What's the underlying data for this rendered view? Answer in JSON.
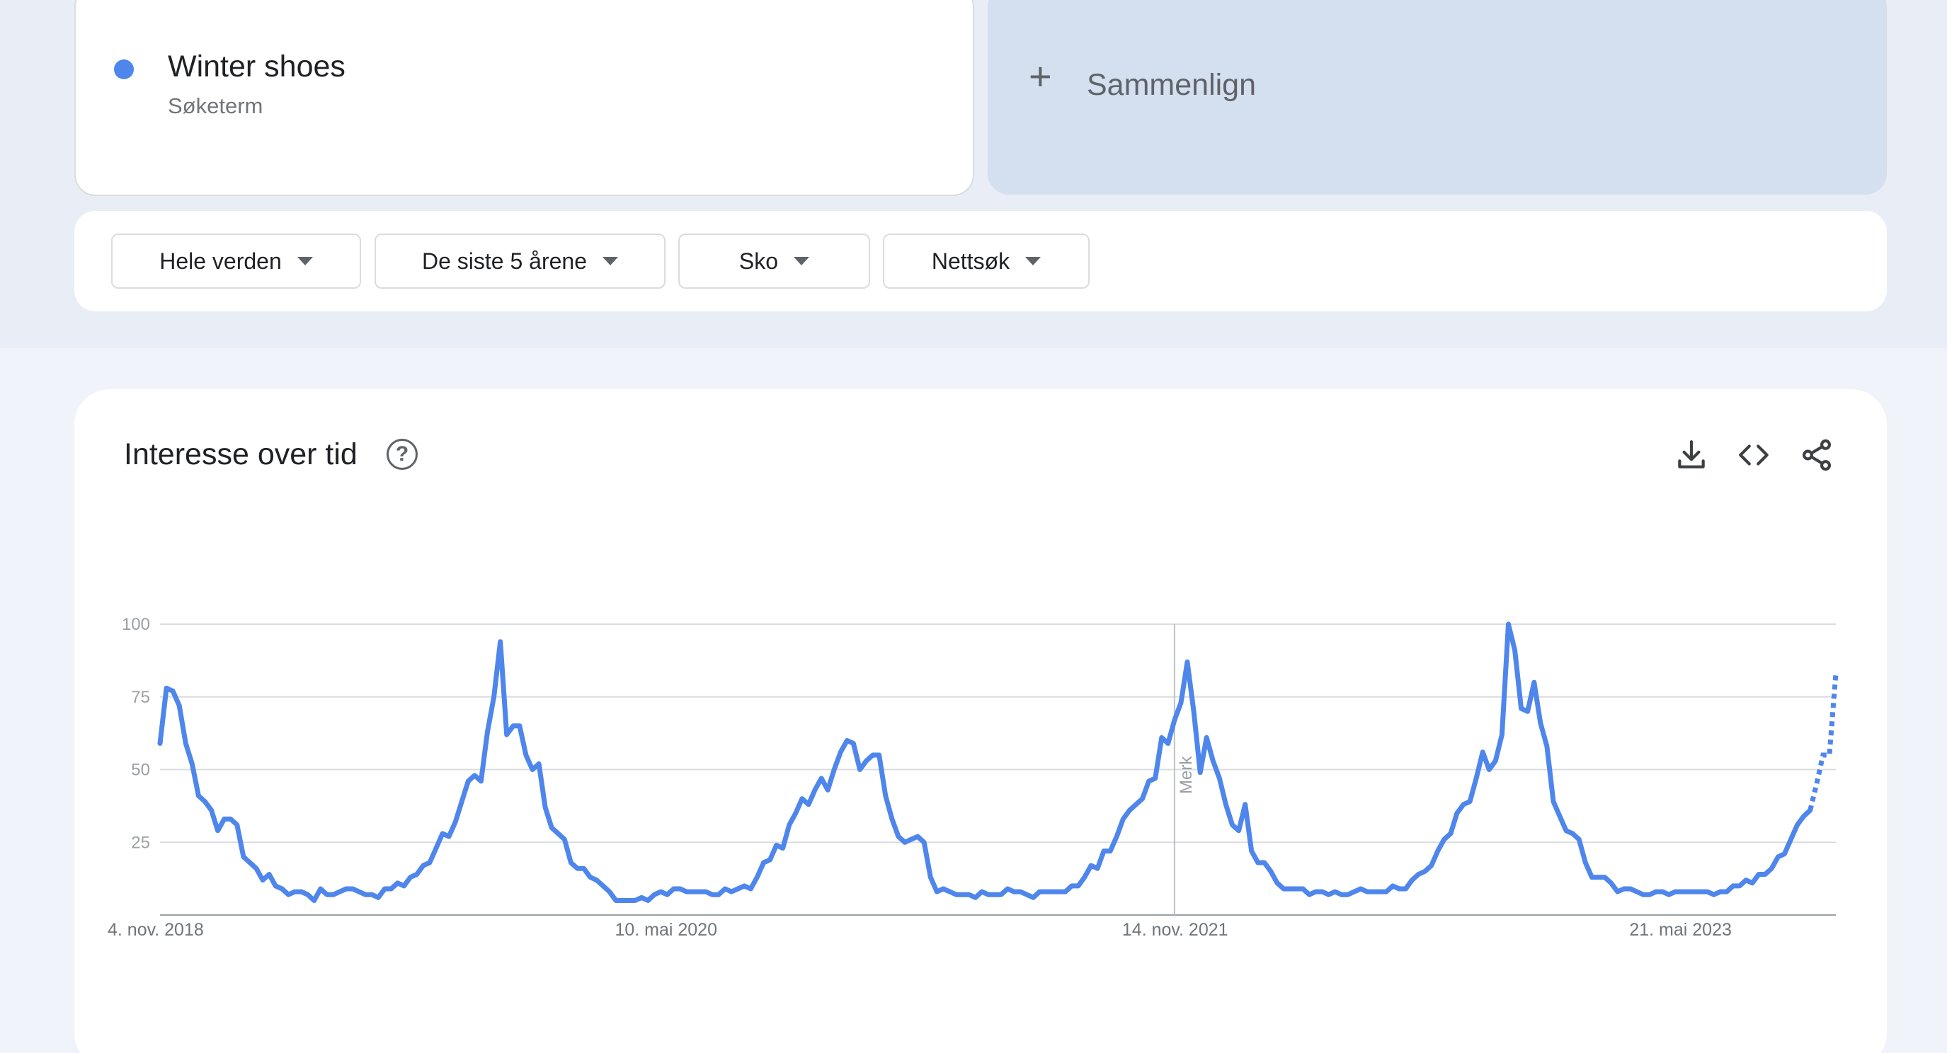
{
  "term": {
    "name": "Winter shoes",
    "type": "Søketerm",
    "color": "#4f86ec"
  },
  "compare": {
    "icon": "plus-icon",
    "label": "Sammenlign"
  },
  "filters": [
    {
      "label": "Hele verden",
      "icon": "caret-down-icon"
    },
    {
      "label": "De siste 5 årene",
      "icon": "caret-down-icon"
    },
    {
      "label": "Sko",
      "icon": "caret-down-icon"
    },
    {
      "label": "Nettsøk",
      "icon": "caret-down-icon"
    }
  ],
  "chart_card": {
    "title": "Interesse over tid",
    "help_icon": "help-circle-icon",
    "tools": [
      "download-icon",
      "embed-code-icon",
      "share-icon"
    ]
  },
  "chart_data": {
    "type": "line",
    "title": "Interesse over tid",
    "xlabel": "",
    "ylabel": "",
    "ylim": [
      0,
      100
    ],
    "yticks": [
      "100",
      "75",
      "50",
      "25"
    ],
    "ytick_values": [
      100,
      75,
      50,
      25
    ],
    "xticks": [
      "4. nov. 2018",
      "10. mai 2020",
      "14. nov. 2021",
      "21. mai 2023"
    ],
    "xtick_index": [
      0,
      79,
      158,
      237
    ],
    "annotation": {
      "label": "Merk",
      "index": 158
    },
    "grid": true,
    "legend": "none",
    "line_color": "#4f86ec",
    "partial_from_index": 257,
    "series": [
      {
        "values": [
          59,
          78,
          77,
          72,
          59,
          52,
          41,
          39,
          36,
          29,
          33,
          33,
          31,
          20,
          18,
          16,
          12,
          14,
          10,
          9,
          7,
          8,
          8,
          7,
          5,
          9,
          7,
          7,
          8,
          9,
          9,
          8,
          7,
          7,
          6,
          9,
          9,
          11,
          10,
          13,
          14,
          17,
          18,
          23,
          28,
          27,
          32,
          39,
          46,
          48,
          46,
          63,
          75,
          94,
          62,
          65,
          65,
          55,
          50,
          52,
          37,
          30,
          28,
          26,
          18,
          16,
          16,
          13,
          12,
          10,
          8,
          5,
          5,
          5,
          5,
          6,
          5,
          7,
          8,
          7,
          9,
          9,
          8,
          8,
          8,
          8,
          7,
          7,
          9,
          8,
          9,
          10,
          9,
          13,
          18,
          19,
          24,
          23,
          31,
          35,
          40,
          38,
          43,
          47,
          43,
          50,
          56,
          60,
          59,
          50,
          53,
          55,
          55,
          41,
          33,
          27,
          25,
          26,
          27,
          25,
          13,
          8,
          9,
          8,
          7,
          7,
          7,
          6,
          8,
          7,
          7,
          7,
          9,
          8,
          8,
          7,
          6,
          8,
          8,
          8,
          8,
          8,
          10,
          10,
          13,
          17,
          16,
          22,
          22,
          27,
          33,
          36,
          38,
          40,
          46,
          47,
          61,
          59,
          67,
          73,
          87,
          70,
          49,
          61,
          53,
          47,
          38,
          31,
          29,
          38,
          22,
          18,
          18,
          15,
          11,
          9,
          9,
          9,
          9,
          7,
          8,
          8,
          7,
          8,
          7,
          7,
          8,
          9,
          8,
          8,
          8,
          8,
          10,
          9,
          9,
          12,
          14,
          15,
          17,
          22,
          26,
          28,
          35,
          38,
          39,
          47,
          56,
          50,
          53,
          62,
          100,
          91,
          71,
          70,
          80,
          66,
          58,
          39,
          34,
          29,
          28,
          26,
          18,
          13,
          13,
          13,
          11,
          8,
          9,
          9,
          8,
          7,
          7,
          8,
          8,
          7,
          8,
          8,
          8,
          8,
          8,
          8,
          7,
          8,
          8,
          10,
          10,
          12,
          11,
          14,
          14,
          16,
          20,
          21,
          26,
          31,
          34,
          36,
          45,
          55,
          55,
          83
        ]
      }
    ]
  }
}
